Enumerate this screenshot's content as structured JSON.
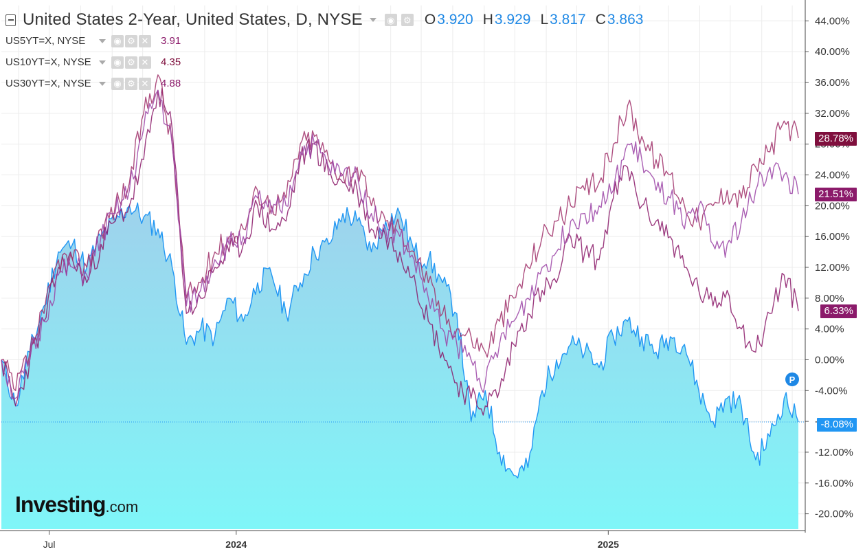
{
  "header": {
    "title": "United States 2-Year, United States, D, NYSE",
    "ohlc": [
      {
        "key": "O",
        "value": "3.920"
      },
      {
        "key": "H",
        "value": "3.929"
      },
      {
        "key": "L",
        "value": "3.817"
      },
      {
        "key": "C",
        "value": "3.863"
      }
    ]
  },
  "overlays": [
    {
      "symbol": "US5YT=X, NYSE",
      "value": "3.91"
    },
    {
      "symbol": "US10YT=X, NYSE",
      "value": "4.35"
    },
    {
      "symbol": "US30YT=X, NYSE",
      "value": "4.88"
    }
  ],
  "logo": {
    "main": "Investing",
    "suffix": ".com"
  },
  "marker_label": "P",
  "colors": {
    "us2y_line": "#2196f3",
    "us2y_fill_top": "#9fd2ec",
    "us2y_fill_bottom": "#7ff6f8",
    "us5y": "#8b1a6a",
    "us10y": "#a0306a",
    "us30y": "#9b43a6",
    "grid": "#ececec",
    "axis_text": "#333333",
    "tag_dark": "#7f0f3d",
    "tag_purple": "#8b1a6a"
  },
  "chart_data": {
    "type": "line",
    "title": "United States 2-Year, United States, D, NYSE",
    "ylabel": "",
    "y_unit": "%",
    "ylim": [
      -22,
      46
    ],
    "y_ticks": [
      "44.00%",
      "40.00%",
      "36.00%",
      "32.00%",
      "28.00%",
      "24.00%",
      "20.00%",
      "16.00%",
      "12.00%",
      "8.00%",
      "4.00%",
      "0.00%",
      "-4.00%",
      "-8.00%",
      "-12.00%",
      "-16.00%",
      "-20.00%"
    ],
    "x_ticks": [
      "Jul",
      "2024",
      "2025"
    ],
    "x": [
      "2023-05-15",
      "2023-05-29",
      "2023-06-12",
      "2023-06-26",
      "2023-07-10",
      "2023-07-24",
      "2023-08-07",
      "2023-08-21",
      "2023-09-04",
      "2023-09-18",
      "2023-10-02",
      "2023-10-16",
      "2023-10-30",
      "2023-11-13",
      "2023-11-27",
      "2023-12-11",
      "2023-12-25",
      "2024-01-08",
      "2024-01-22",
      "2024-02-05",
      "2024-02-19",
      "2024-03-04",
      "2024-03-18",
      "2024-04-01",
      "2024-04-15",
      "2024-04-29",
      "2024-05-13",
      "2024-05-27",
      "2024-06-10",
      "2024-06-24",
      "2024-07-08",
      "2024-07-22",
      "2024-08-05",
      "2024-08-19",
      "2024-09-02",
      "2024-09-16",
      "2024-09-30",
      "2024-10-14",
      "2024-10-28",
      "2024-11-11",
      "2024-11-25",
      "2024-12-09",
      "2024-12-23",
      "2025-01-06",
      "2025-01-20",
      "2025-02-03",
      "2025-02-17",
      "2025-03-03",
      "2025-03-17",
      "2025-03-31",
      "2025-04-14",
      "2025-04-28",
      "2025-05-12",
      "2025-05-26",
      "2025-06-09",
      "2025-06-23",
      "2025-07-07"
    ],
    "series": [
      {
        "name": "United States 2-Year",
        "last_label": "-8.08%",
        "values": [
          0.0,
          -6.0,
          1.0,
          7.0,
          14.0,
          15.0,
          12.0,
          16.0,
          18.0,
          20.0,
          18.5,
          17.0,
          12.0,
          2.0,
          4.0,
          3.0,
          8.0,
          5.0,
          10.0,
          11.0,
          6.0,
          10.0,
          14.0,
          15.0,
          19.0,
          18.0,
          14.0,
          18.0,
          19.0,
          14.0,
          13.0,
          10.0,
          6.0,
          -8.0,
          -4.0,
          -12.0,
          -15.0,
          -14.0,
          -4.0,
          0.0,
          2.0,
          1.0,
          -1.0,
          3.0,
          5.0,
          3.0,
          1.0,
          3.0,
          2.0,
          -4.0,
          -8.0,
          -5.0,
          -6.0,
          -13.0,
          -10.0,
          -5.0,
          -8.08
        ]
      },
      {
        "name": "US5YT=X, NYSE",
        "last_label": "6.33%",
        "values": [
          0.0,
          -6.0,
          0.0,
          5.0,
          12.0,
          13.0,
          10.0,
          15.0,
          18.0,
          20.0,
          26.0,
          35.0,
          30.0,
          6.0,
          8.0,
          12.0,
          14.0,
          15.0,
          20.0,
          17.0,
          18.0,
          26.0,
          28.0,
          24.0,
          23.0,
          22.0,
          17.0,
          16.0,
          14.0,
          11.0,
          5.0,
          1.0,
          -3.0,
          -5.0,
          -6.0,
          -4.0,
          2.0,
          6.0,
          9.0,
          10.0,
          16.0,
          14.0,
          13.0,
          21.0,
          25.0,
          20.0,
          18.0,
          16.0,
          12.0,
          9.0,
          7.0,
          9.0,
          4.0,
          1.0,
          6.0,
          11.0,
          6.33
        ]
      },
      {
        "name": "US10YT=X, NYSE",
        "last_label": "28.78%",
        "values": [
          0.0,
          -4.0,
          1.0,
          6.0,
          13.0,
          13.0,
          12.0,
          17.0,
          20.0,
          23.0,
          32.0,
          37.0,
          28.0,
          8.0,
          10.0,
          14.0,
          16.0,
          17.0,
          22.0,
          20.0,
          21.0,
          28.0,
          29.0,
          26.0,
          24.0,
          25.0,
          20.0,
          18.0,
          17.0,
          14.0,
          10.0,
          6.0,
          4.0,
          3.0,
          1.0,
          5.0,
          8.0,
          12.0,
          16.0,
          18.0,
          20.0,
          22.0,
          23.0,
          28.0,
          33.0,
          29.0,
          26.0,
          24.0,
          20.0,
          18.0,
          20.0,
          22.0,
          21.0,
          25.0,
          27.0,
          31.0,
          28.78
        ]
      },
      {
        "name": "US30YT=X, NYSE",
        "last_label": "21.51%",
        "values": [
          0.0,
          -5.0,
          0.0,
          5.0,
          11.0,
          12.0,
          11.0,
          16.0,
          19.0,
          22.0,
          30.0,
          35.0,
          28.0,
          7.0,
          9.0,
          13.0,
          15.0,
          16.0,
          21.0,
          19.0,
          20.0,
          27.0,
          28.0,
          25.0,
          24.0,
          24.0,
          19.0,
          17.0,
          16.0,
          13.0,
          8.0,
          4.0,
          2.0,
          0.0,
          -3.0,
          2.0,
          5.0,
          8.0,
          12.0,
          14.0,
          18.0,
          19.0,
          20.0,
          22.0,
          28.0,
          26.0,
          22.0,
          21.0,
          17.0,
          20.0,
          15.0,
          15.0,
          18.0,
          22.0,
          25.0,
          24.0,
          21.51
        ]
      }
    ],
    "grid": true,
    "legend": "top-left"
  }
}
